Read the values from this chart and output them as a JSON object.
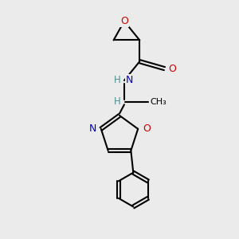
{
  "bg_color": "#ebebeb",
  "atom_colors": {
    "C": "#000000",
    "N": "#0000cc",
    "O": "#cc0000",
    "H": "#4a9090"
  },
  "font_size": 8.5,
  "figsize": [
    3.0,
    3.0
  ],
  "dpi": 100
}
